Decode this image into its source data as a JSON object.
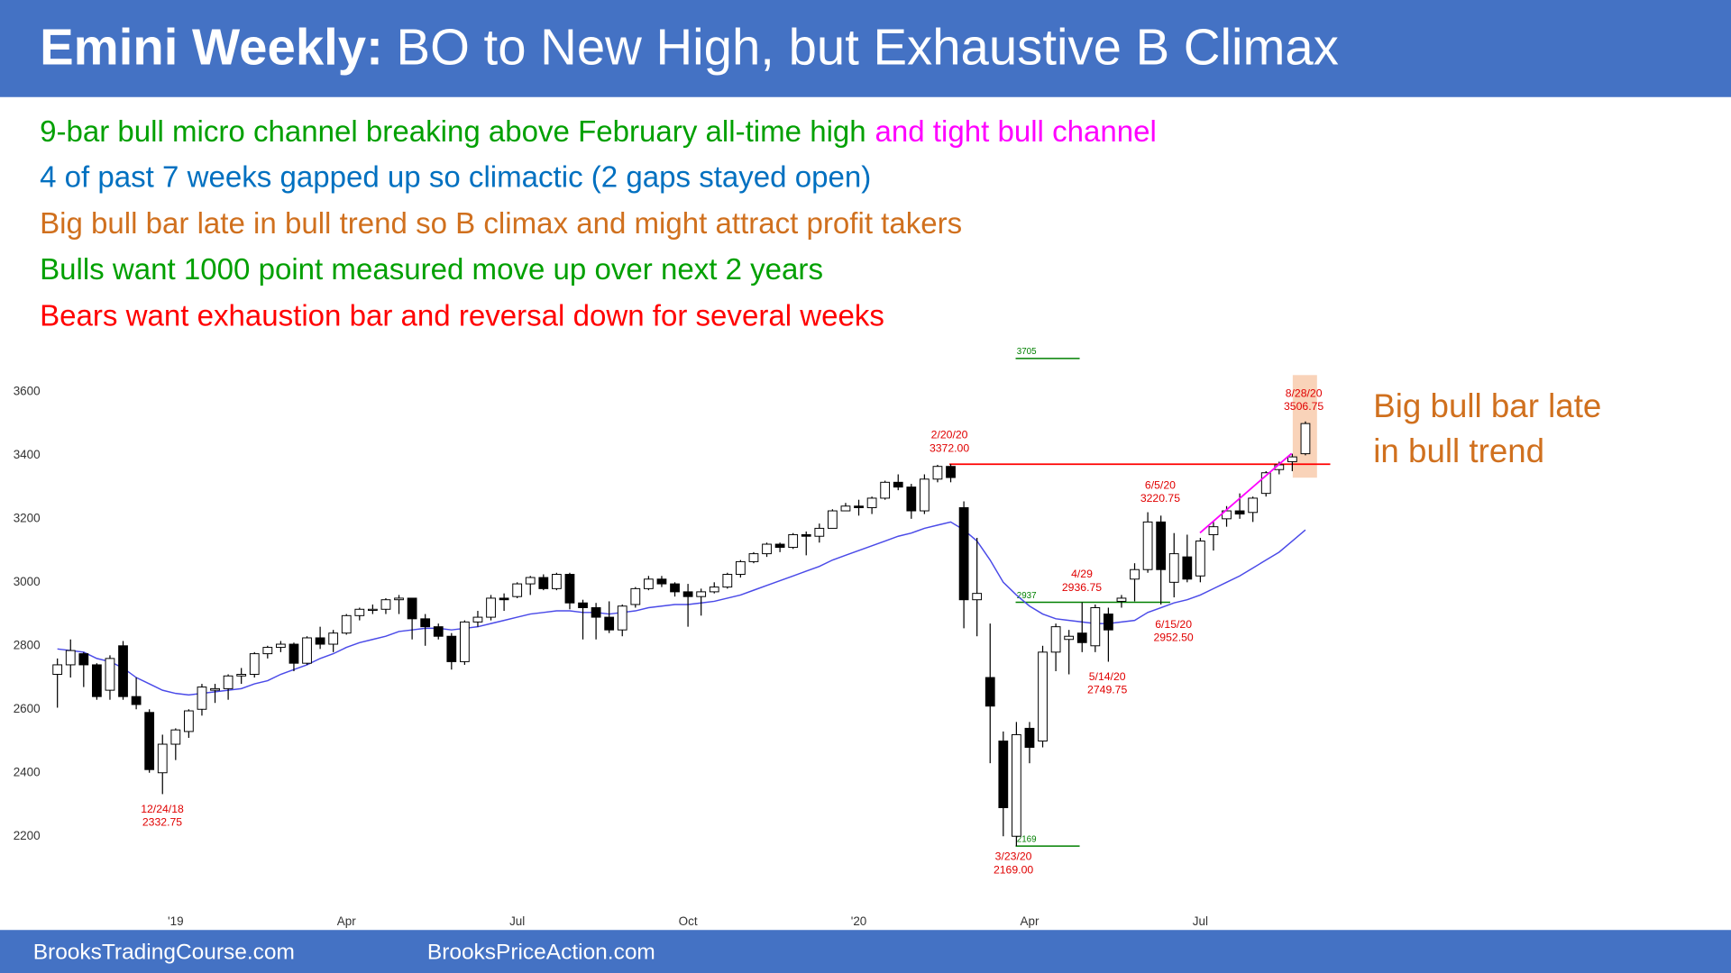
{
  "header": {
    "title_bold": "Emini Weekly:",
    "title": "BO to New High, but Exhaustive B Climax"
  },
  "notes": [
    [
      {
        "text": "9-bar bull micro channel breaking above February all-time high",
        "color": "#00a000"
      },
      {
        "text": "and tight bull channel",
        "color": "#ff00ff"
      }
    ],
    [
      {
        "text": "4 of past 7 weeks gapped up so climactic (2 gaps stayed open)",
        "color": "#0070c0"
      }
    ],
    [
      {
        "text": "Big bull bar late in bull trend so B climax and might attract profit takers",
        "color": "#d0701e"
      }
    ],
    [
      {
        "text": "Bulls want 1000 point measured move up over next 2 years",
        "color": "#00a000"
      }
    ],
    [
      {
        "text": "Bears want exhaustion bar and reversal down for several weeks",
        "color": "#ff0000"
      }
    ]
  ],
  "chart_data": {
    "type": "candlestick",
    "categories": [
      null,
      null,
      null,
      null,
      null,
      null,
      null,
      null,
      null,
      "'19",
      null,
      null,
      null,
      null,
      null,
      null,
      null,
      null,
      null,
      null,
      null,
      null,
      "Apr",
      null,
      null,
      null,
      null,
      null,
      null,
      null,
      null,
      null,
      null,
      null,
      null,
      "Jul",
      null,
      null,
      null,
      null,
      null,
      null,
      null,
      null,
      null,
      null,
      null,
      null,
      "Oct",
      null,
      null,
      null,
      null,
      null,
      null,
      null,
      null,
      null,
      null,
      null,
      null,
      "'20",
      null,
      null,
      null,
      null,
      null,
      null,
      null,
      null,
      null,
      null,
      null,
      null,
      "Apr",
      null,
      null,
      null,
      null,
      null,
      null,
      null,
      null,
      null,
      null,
      null,
      null,
      "Jul",
      null,
      null,
      null,
      null,
      null,
      null,
      null,
      null
    ],
    "open": [
      2710,
      2740,
      2775,
      2740,
      2660,
      2800,
      2640,
      2590,
      2400,
      2490,
      2530,
      2600,
      2660,
      2665,
      2705,
      2710,
      2775,
      2795,
      2805,
      2745,
      2825,
      2805,
      2840,
      2895,
      2915,
      2915,
      2945,
      2950,
      2885,
      2860,
      2830,
      2750,
      2875,
      2890,
      2950,
      2955,
      2995,
      3015,
      2980,
      3025,
      2935,
      2920,
      2890,
      2850,
      2930,
      2980,
      3010,
      2995,
      2970,
      2955,
      2970,
      2985,
      3025,
      3065,
      3090,
      3120,
      3110,
      3150,
      3145,
      3170,
      3225,
      3240,
      3235,
      3265,
      3315,
      3300,
      3225,
      3325,
      3365,
      3235,
      2945,
      2700,
      2500,
      2200,
      2540,
      2500,
      2780,
      2820,
      2840,
      2800,
      2900,
      2940,
      3010,
      3040,
      3190,
      3000,
      3080,
      3020,
      3150,
      3200,
      3225,
      3220,
      3280,
      3355,
      3380,
      3405
    ],
    "high": [
      2760,
      2820,
      2780,
      2745,
      2770,
      2815,
      2700,
      2600,
      2520,
      2540,
      2600,
      2680,
      2680,
      2710,
      2730,
      2780,
      2800,
      2815,
      2810,
      2830,
      2860,
      2850,
      2900,
      2920,
      2930,
      2950,
      2960,
      2950,
      2900,
      2870,
      2840,
      2880,
      2910,
      2960,
      2965,
      3000,
      3020,
      3025,
      3030,
      3030,
      2945,
      2935,
      2940,
      2930,
      2985,
      3020,
      3020,
      3000,
      2995,
      2980,
      3000,
      3030,
      3070,
      3095,
      3125,
      3125,
      3155,
      3160,
      3185,
      3230,
      3250,
      3260,
      3270,
      3320,
      3340,
      3310,
      3340,
      3370,
      3372,
      3255,
      3140,
      2870,
      2530,
      2560,
      2560,
      2800,
      2870,
      2850,
      2936.75,
      2930,
      2920,
      2960,
      3060,
      3220.75,
      3210,
      3155,
      3150,
      3140,
      3190,
      3240,
      3280,
      3270,
      3350,
      3380,
      3405,
      3506.75
    ],
    "low": [
      2605,
      2700,
      2670,
      2630,
      2630,
      2630,
      2600,
      2400,
      2332.75,
      2440,
      2510,
      2580,
      2620,
      2630,
      2680,
      2700,
      2760,
      2780,
      2720,
      2740,
      2790,
      2780,
      2835,
      2880,
      2900,
      2900,
      2900,
      2820,
      2800,
      2820,
      2725,
      2740,
      2860,
      2880,
      2910,
      2950,
      2960,
      2975,
      2975,
      2915,
      2820,
      2820,
      2840,
      2830,
      2920,
      2975,
      2985,
      2955,
      2860,
      2895,
      2965,
      2980,
      3015,
      3060,
      3080,
      3095,
      3105,
      3085,
      3125,
      3170,
      3225,
      3210,
      3215,
      3260,
      3290,
      3200,
      3215,
      3315,
      3315,
      2855,
      2830,
      2430,
      2200,
      2169,
      2430,
      2480,
      2720,
      2710,
      2780,
      2780,
      2749.75,
      2920,
      2940,
      3030,
      2930,
      2952.5,
      3000,
      3000,
      3100,
      3175,
      3200,
      3190,
      3270,
      3340,
      3350,
      3400
    ],
    "close": [
      2740,
      2785,
      2740,
      2640,
      2760,
      2640,
      2615,
      2410,
      2490,
      2535,
      2595,
      2670,
      2665,
      2705,
      2710,
      2775,
      2795,
      2805,
      2745,
      2825,
      2805,
      2840,
      2895,
      2915,
      2915,
      2945,
      2950,
      2885,
      2860,
      2830,
      2750,
      2875,
      2890,
      2950,
      2945,
      2995,
      3015,
      2980,
      3025,
      2935,
      2920,
      2890,
      2850,
      2925,
      2980,
      3010,
      2995,
      2970,
      2955,
      2970,
      2985,
      3025,
      3065,
      3090,
      3120,
      3110,
      3150,
      3145,
      3170,
      3225,
      3240,
      3235,
      3265,
      3315,
      3300,
      3225,
      3325,
      3365,
      3330,
      2945,
      2965,
      2610,
      2290,
      2520,
      2480,
      2780,
      2860,
      2830,
      2810,
      2920,
      2850,
      2950,
      3040,
      3190,
      3040,
      3090,
      3010,
      3130,
      3175,
      3225,
      3215,
      3265,
      3345,
      3370,
      3395,
      3500
    ],
    "up_color": "#ffffff",
    "down_color": "#000000",
    "moving_average": {
      "color": "#4a4ae8",
      "values": [
        2790,
        2785,
        2780,
        2760,
        2750,
        2730,
        2700,
        2680,
        2660,
        2650,
        2645,
        2650,
        2655,
        2660,
        2665,
        2680,
        2690,
        2710,
        2725,
        2740,
        2760,
        2775,
        2795,
        2810,
        2820,
        2830,
        2845,
        2850,
        2855,
        2855,
        2850,
        2855,
        2860,
        2870,
        2880,
        2890,
        2900,
        2905,
        2910,
        2910,
        2905,
        2905,
        2900,
        2905,
        2910,
        2920,
        2925,
        2930,
        2930,
        2935,
        2940,
        2950,
        2960,
        2975,
        2990,
        3005,
        3020,
        3035,
        3050,
        3070,
        3085,
        3100,
        3115,
        3130,
        3145,
        3155,
        3170,
        3180,
        3190,
        3165,
        3130,
        3070,
        3000,
        2960,
        2925,
        2900,
        2885,
        2880,
        2875,
        2870,
        2870,
        2875,
        2880,
        2905,
        2920,
        2935,
        2945,
        2960,
        2980,
        3000,
        3020,
        3045,
        3070,
        3095,
        3130,
        3165
      ]
    },
    "ylim": [
      2000,
      3750
    ],
    "yticks": [
      2200,
      2400,
      2600,
      2800,
      3000,
      3200,
      3400,
      3600
    ],
    "grid": false,
    "annotations": [
      {
        "date": "12/24/18",
        "value": 2332.75
      },
      {
        "date": "2/20/20",
        "value": 3372,
        "value_label": "3372.00"
      },
      {
        "date": "6/5/20",
        "value": 3220.75
      },
      {
        "date": "4/29",
        "value": 2936.75
      },
      {
        "date": "6/15/20",
        "value": 2952.5,
        "value_label": "2952.50"
      },
      {
        "date": "5/14/20",
        "value": 2749.75
      },
      {
        "date": "3/23/20",
        "value": 2169,
        "value_label": "2169.00"
      },
      {
        "date": "8/28/20",
        "value": 3506.75
      }
    ],
    "levels": [
      {
        "value": 3705,
        "color": "#008000"
      },
      {
        "value": 2937,
        "color": "#008000"
      },
      {
        "value": 2169,
        "color": "#008000"
      }
    ],
    "callout": [
      "Big bull bar late",
      "in bull trend"
    ]
  },
  "footer": {
    "left": "BrooksTradingCourse.com",
    "right": "BrooksPriceAction.com"
  }
}
